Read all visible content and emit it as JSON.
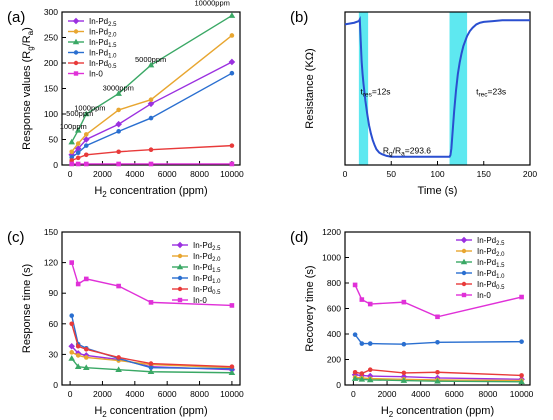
{
  "chart_data": [
    {
      "panel_label": "(a)",
      "type": "line",
      "xlabel": "H2 concentration (ppm)",
      "xlabel_main": "H",
      "xlabel_sub": "2",
      "xlabel_rest": " concentration (ppm)",
      "ylabel": "Response values (Rg/Ra)",
      "xlim": [
        -500,
        10500
      ],
      "ylim": [
        0,
        300
      ],
      "xticks": [
        0,
        2000,
        4000,
        6000,
        8000,
        10000
      ],
      "yticks": [
        0,
        50,
        100,
        150,
        200,
        250,
        300
      ],
      "x": [
        100,
        500,
        1000,
        3000,
        5000,
        10000
      ],
      "annotations": [
        {
          "text": "10000ppm",
          "x": 10000,
          "y": 293
        },
        {
          "text": "5000ppm",
          "x": 5000,
          "y": 196
        },
        {
          "text": "3000ppm",
          "x": 3000,
          "y": 140
        },
        {
          "text": "1000ppm",
          "x": 1000,
          "y": 101
        },
        {
          "text": "500ppm",
          "x": 500,
          "y": 90
        },
        {
          "text": "100ppm",
          "x": 100,
          "y": 65
        }
      ],
      "legend_position": "top-left",
      "series": [
        {
          "name": "In-Pd2.5",
          "base": "In-Pd",
          "sub": "2.5",
          "color": "#9b30e0",
          "marker": "diamond",
          "values": [
            20,
            32,
            50,
            80,
            120,
            202
          ]
        },
        {
          "name": "In-Pd2.0",
          "base": "In-Pd",
          "sub": "2.0",
          "color": "#e8a630",
          "marker": "circle",
          "values": [
            26,
            42,
            60,
            108,
            128,
            254
          ]
        },
        {
          "name": "In-Pd1.5",
          "base": "In-Pd",
          "sub": "1.5",
          "color": "#3aa865",
          "marker": "triangle",
          "values": [
            45,
            68,
            100,
            140,
            196,
            293
          ]
        },
        {
          "name": "In-Pd1.0",
          "base": "In-Pd",
          "sub": "1.0",
          "color": "#2a6fd0",
          "marker": "circle",
          "values": [
            15,
            24,
            38,
            66,
            92,
            180
          ]
        },
        {
          "name": "In-Pd0.5",
          "base": "In-Pd",
          "sub": "0.5",
          "color": "#e83a3a",
          "marker": "circle",
          "values": [
            9,
            14,
            20,
            26,
            30,
            38
          ]
        },
        {
          "name": "In-0",
          "base": "In-0",
          "sub": "",
          "color": "#e030d8",
          "marker": "square",
          "values": [
            2,
            2,
            2,
            2,
            2,
            2
          ]
        }
      ]
    },
    {
      "panel_label": "(b)",
      "type": "line",
      "xlabel": "Time (s)",
      "ylabel": "Resistance (KΩ)",
      "xlim": [
        0,
        200
      ],
      "ylim": [
        0,
        185
      ],
      "xticks": [
        0,
        50,
        100,
        150,
        200
      ],
      "show_y_tick_labels": false,
      "shaded_regions": [
        [
          15,
          25
        ],
        [
          113,
          132
        ]
      ],
      "shade_color": "#5ee8f0",
      "line_color": "#2a4fd0",
      "x": [
        0,
        10,
        15,
        16,
        17,
        18,
        19,
        20,
        21,
        22,
        23,
        24,
        26,
        28,
        30,
        32,
        34,
        37,
        40,
        45,
        50,
        60,
        80,
        100,
        112,
        113,
        114,
        115,
        116,
        118,
        120,
        122,
        124,
        126,
        128,
        130,
        132,
        135,
        138,
        142,
        146,
        150,
        160,
        170,
        180,
        200
      ],
      "values": [
        170,
        172,
        174,
        176,
        150,
        125,
        110,
        98,
        88,
        78,
        70,
        62,
        48,
        38,
        30,
        24,
        19,
        15,
        13,
        11,
        10,
        10,
        10,
        10,
        10,
        10,
        12,
        20,
        35,
        65,
        90,
        110,
        124,
        135,
        144,
        150,
        156,
        162,
        166,
        170,
        172,
        173,
        174,
        175,
        175,
        175
      ],
      "annotations": [
        {
          "text": "tres=12s",
          "main": "t",
          "sub": "res",
          "rest": "=12s",
          "x": 33,
          "y": 85
        },
        {
          "text": "trec=23s",
          "main": "t",
          "sub": "rec",
          "rest": "=23s",
          "x": 158,
          "y": 85
        },
        {
          "text": "Rg/Ra=293.6",
          "main": "R",
          "sub": "g",
          "mid": "/R",
          "sub2": "a",
          "rest": "=293.6",
          "x": 67,
          "y": 14
        }
      ]
    },
    {
      "panel_label": "(c)",
      "type": "line",
      "xlabel": "H2 concentration (ppm)",
      "xlabel_main": "H",
      "xlabel_sub": "2",
      "xlabel_rest": " concentration (ppm)",
      "ylabel": "Response time (s)",
      "xlim": [
        -500,
        10500
      ],
      "ylim": [
        0,
        150
      ],
      "xticks": [
        0,
        2000,
        4000,
        6000,
        8000,
        10000
      ],
      "yticks": [
        0,
        30,
        60,
        90,
        120,
        150
      ],
      "x": [
        100,
        500,
        1000,
        3000,
        5000,
        10000
      ],
      "legend_position": "top-right",
      "series": [
        {
          "name": "In-Pd2.5",
          "base": "In-Pd",
          "sub": "2.5",
          "color": "#9b30e0",
          "marker": "diamond",
          "values": [
            38,
            31,
            29,
            25,
            18,
            15
          ]
        },
        {
          "name": "In-Pd2.0",
          "base": "In-Pd",
          "sub": "2.0",
          "color": "#e8a630",
          "marker": "circle",
          "values": [
            32,
            29,
            27,
            24,
            20,
            17
          ]
        },
        {
          "name": "In-Pd1.5",
          "base": "In-Pd",
          "sub": "1.5",
          "color": "#3aa865",
          "marker": "triangle",
          "values": [
            26,
            18,
            17,
            15,
            13,
            12
          ]
        },
        {
          "name": "In-Pd1.0",
          "base": "In-Pd",
          "sub": "1.0",
          "color": "#2a6fd0",
          "marker": "circle",
          "values": [
            68,
            40,
            36,
            26,
            17,
            16
          ]
        },
        {
          "name": "In-Pd0.5",
          "base": "In-Pd",
          "sub": "0.5",
          "color": "#e83a3a",
          "marker": "circle",
          "values": [
            60,
            38,
            35,
            27,
            21,
            18
          ]
        },
        {
          "name": "In-0",
          "base": "In-0",
          "sub": "",
          "color": "#e030d8",
          "marker": "square",
          "values": [
            120,
            99,
            104,
            97,
            81,
            78
          ]
        }
      ]
    },
    {
      "panel_label": "(d)",
      "type": "line",
      "xlabel": "H2 concentration (ppm)",
      "xlabel_main": "H",
      "xlabel_sub": "2",
      "xlabel_rest": " concentration (ppm)",
      "ylabel": "Recovery time (s)",
      "xlim": [
        -500,
        10500
      ],
      "ylim": [
        0,
        1200
      ],
      "xticks": [
        0,
        2000,
        4000,
        6000,
        8000,
        10000
      ],
      "yticks": [
        0,
        200,
        400,
        600,
        800,
        1000,
        1200
      ],
      "x": [
        100,
        500,
        1000,
        3000,
        5000,
        10000
      ],
      "legend_position": "top-right",
      "series": [
        {
          "name": "In-Pd2.5",
          "base": "In-Pd",
          "sub": "2.5",
          "color": "#9b30e0",
          "marker": "diamond",
          "values": [
            80,
            75,
            70,
            65,
            55,
            45
          ]
        },
        {
          "name": "In-Pd2.0",
          "base": "In-Pd",
          "sub": "2.0",
          "color": "#e8a630",
          "marker": "circle",
          "values": [
            60,
            55,
            50,
            45,
            40,
            35
          ]
        },
        {
          "name": "In-Pd1.5",
          "base": "In-Pd",
          "sub": "1.5",
          "color": "#3aa865",
          "marker": "triangle",
          "values": [
            50,
            45,
            40,
            35,
            30,
            25
          ]
        },
        {
          "name": "In-Pd1.0",
          "base": "In-Pd",
          "sub": "1.0",
          "color": "#2a6fd0",
          "marker": "circle",
          "values": [
            395,
            325,
            325,
            320,
            335,
            340
          ]
        },
        {
          "name": "In-Pd0.5",
          "base": "In-Pd",
          "sub": "0.5",
          "color": "#e83a3a",
          "marker": "circle",
          "values": [
            100,
            90,
            120,
            95,
            100,
            75
          ]
        },
        {
          "name": "In-0",
          "base": "In-0",
          "sub": "",
          "color": "#e030d8",
          "marker": "square",
          "values": [
            785,
            670,
            635,
            650,
            535,
            690
          ]
        }
      ]
    }
  ]
}
